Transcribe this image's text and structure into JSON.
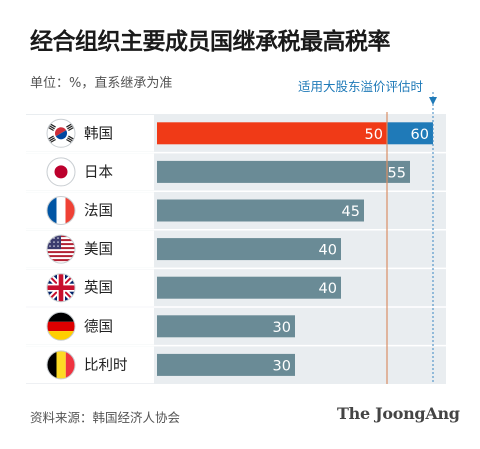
{
  "title": "经合组织主要成员国继承税最高税率",
  "unit_note": "单位：%，直系继承为准",
  "annotation": "适用大股东溢价评估时",
  "source": "资料来源：韩国经济人协会",
  "brand": "The JoongAng",
  "colors": {
    "bar_default": "#6a8b96",
    "bar_korea": "#f03a17",
    "bar_korea_premium": "#1f7ab8",
    "plot_background": "#e9edf0",
    "ref_line_orange": "#d98f66",
    "ref_line_blue": "#3a86c2"
  },
  "chart_data": {
    "type": "bar",
    "orientation": "horizontal",
    "categories": [
      "韩国",
      "日本",
      "法国",
      "美国",
      "英国",
      "德国",
      "比利时"
    ],
    "flags": [
      "korea-flag-icon",
      "japan-flag-icon",
      "france-flag-icon",
      "usa-flag-icon",
      "uk-flag-icon",
      "germany-flag-icon",
      "belgium-flag-icon"
    ],
    "series": [
      {
        "values": [
          50,
          55,
          45,
          40,
          40,
          30,
          30
        ]
      },
      {
        "values": [
          60,
          null,
          null,
          null,
          null,
          null,
          null
        ]
      }
    ],
    "xlim": [
      0,
      60
    ]
  }
}
